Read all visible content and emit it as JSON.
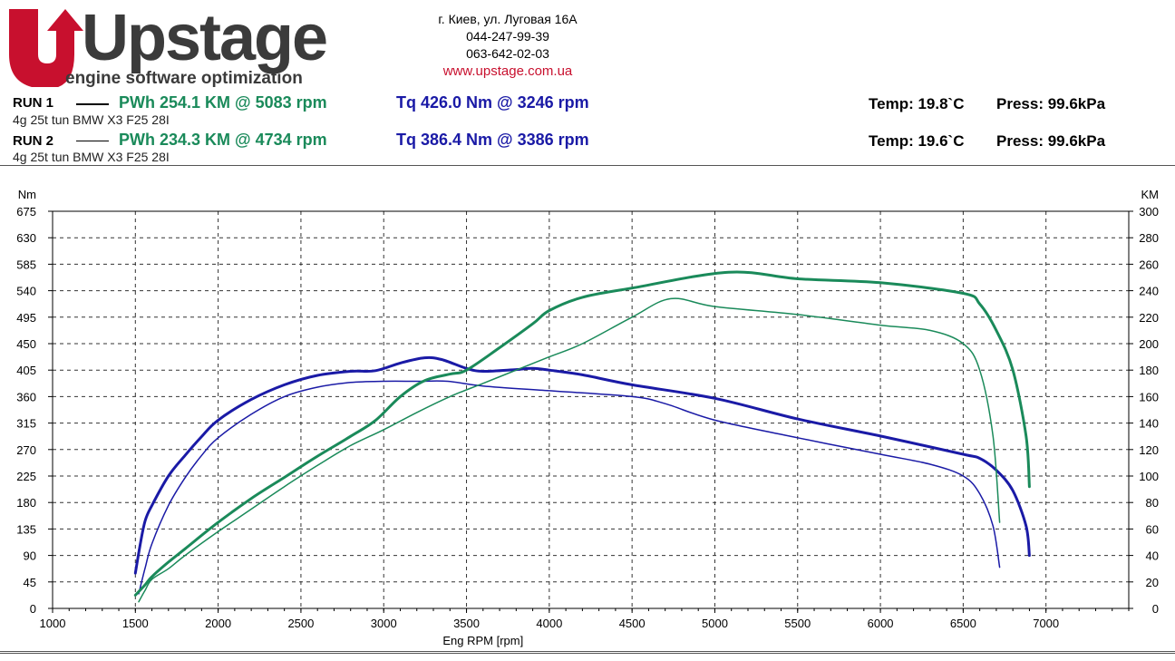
{
  "header": {
    "logo_text": "Upstage",
    "logo_tagline": "engine software optimization",
    "address": "г. Киев, ул. Луговая 16А",
    "phone1": "044-247-99-39",
    "phone2": "063-642-02-03",
    "website": "www.upstage.com.ua"
  },
  "runs": [
    {
      "label": "RUN 1",
      "power": "PWh  254.1 KM @ 5083 rpm",
      "torque": "Tq 426.0 Nm @ 3246 rpm",
      "temp": "Temp: 19.8`C",
      "press": "Press: 99.6kPa",
      "car": "4g 25t tun BMW X3 F25 28I"
    },
    {
      "label": "RUN 2",
      "power": "PWh  234.3 KM @ 4734 rpm",
      "torque": "Tq 386.4 Nm @ 3386 rpm",
      "temp": "Temp: 19.6`C",
      "press": "Press: 99.6kPa",
      "car": "4g 25t tun BMW X3 F25 28I"
    }
  ],
  "colors": {
    "power": "#1a8a5a",
    "torque": "#1a1aa6",
    "brand_red": "#c8102e"
  },
  "chart_data": {
    "type": "line",
    "xlabel": "Eng RPM [rpm]",
    "ylabel_left": "Nm",
    "ylabel_right": "KM",
    "xlim": [
      1000,
      7500
    ],
    "ylim_left": [
      0,
      675
    ],
    "ylim_right": [
      0,
      300
    ],
    "x_ticks": [
      1000,
      1500,
      2000,
      2500,
      3000,
      3500,
      4000,
      4500,
      5000,
      5500,
      6000,
      6500,
      7000
    ],
    "y_ticks_left": [
      0,
      45,
      90,
      135,
      180,
      225,
      270,
      315,
      360,
      405,
      450,
      495,
      540,
      585,
      630,
      675
    ],
    "y_ticks_right": [
      0,
      20,
      40,
      60,
      80,
      100,
      120,
      140,
      160,
      180,
      200,
      220,
      240,
      260,
      280,
      300
    ],
    "grid": true,
    "series": [
      {
        "axis": "left",
        "weight": "thick",
        "color": "#1a1aa6",
        "points": [
          [
            1500,
            60
          ],
          [
            1530,
            110
          ],
          [
            1560,
            150
          ],
          [
            1600,
            175
          ],
          [
            1700,
            225
          ],
          [
            1800,
            260
          ],
          [
            1900,
            292
          ],
          [
            2000,
            320
          ],
          [
            2200,
            355
          ],
          [
            2400,
            380
          ],
          [
            2600,
            396
          ],
          [
            2800,
            403
          ],
          [
            2950,
            404
          ],
          [
            3100,
            417
          ],
          [
            3246,
            426
          ],
          [
            3350,
            423
          ],
          [
            3500,
            408
          ],
          [
            3600,
            403
          ],
          [
            3800,
            406
          ],
          [
            3900,
            408
          ],
          [
            4000,
            405
          ],
          [
            4200,
            397
          ],
          [
            4500,
            380
          ],
          [
            5000,
            357
          ],
          [
            5500,
            322
          ],
          [
            6000,
            293
          ],
          [
            6500,
            262
          ],
          [
            6600,
            255
          ],
          [
            6700,
            235
          ],
          [
            6800,
            200
          ],
          [
            6880,
            140
          ],
          [
            6900,
            90
          ]
        ]
      },
      {
        "axis": "left",
        "weight": "thin",
        "color": "#1a1aa6",
        "points": [
          [
            1520,
            25
          ],
          [
            1560,
            70
          ],
          [
            1600,
            110
          ],
          [
            1700,
            175
          ],
          [
            1800,
            222
          ],
          [
            1900,
            260
          ],
          [
            2000,
            290
          ],
          [
            2200,
            330
          ],
          [
            2400,
            360
          ],
          [
            2600,
            376
          ],
          [
            2800,
            384
          ],
          [
            3000,
            386
          ],
          [
            3200,
            386
          ],
          [
            3386,
            386
          ],
          [
            3600,
            378
          ],
          [
            4000,
            370
          ],
          [
            4500,
            360
          ],
          [
            4700,
            348
          ],
          [
            5000,
            320
          ],
          [
            5500,
            290
          ],
          [
            6000,
            262
          ],
          [
            6300,
            245
          ],
          [
            6500,
            225
          ],
          [
            6600,
            195
          ],
          [
            6680,
            140
          ],
          [
            6720,
            70
          ]
        ]
      },
      {
        "axis": "right",
        "weight": "thick",
        "color": "#1a8a5a",
        "points": [
          [
            1500,
            10
          ],
          [
            1560,
            18
          ],
          [
            1600,
            24
          ],
          [
            1700,
            35
          ],
          [
            1800,
            45
          ],
          [
            2000,
            65
          ],
          [
            2200,
            83
          ],
          [
            2400,
            99
          ],
          [
            2600,
            115
          ],
          [
            2800,
            130
          ],
          [
            2950,
            142
          ],
          [
            3100,
            160
          ],
          [
            3246,
            172
          ],
          [
            3400,
            177
          ],
          [
            3500,
            180
          ],
          [
            3700,
            197
          ],
          [
            3900,
            215
          ],
          [
            4000,
            225
          ],
          [
            4200,
            235
          ],
          [
            4500,
            242
          ],
          [
            5083,
            254
          ],
          [
            5500,
            249
          ],
          [
            6000,
            246
          ],
          [
            6500,
            238
          ],
          [
            6600,
            230
          ],
          [
            6700,
            210
          ],
          [
            6800,
            180
          ],
          [
            6880,
            130
          ],
          [
            6900,
            92
          ]
        ]
      },
      {
        "axis": "right",
        "weight": "thin",
        "color": "#1a8a5a",
        "points": [
          [
            1520,
            5
          ],
          [
            1560,
            14
          ],
          [
            1600,
            22
          ],
          [
            1700,
            30
          ],
          [
            1800,
            40
          ],
          [
            2000,
            58
          ],
          [
            2200,
            75
          ],
          [
            2400,
            92
          ],
          [
            2600,
            108
          ],
          [
            2800,
            123
          ],
          [
            3000,
            135
          ],
          [
            3200,
            148
          ],
          [
            3400,
            160
          ],
          [
            3600,
            170
          ],
          [
            3800,
            180
          ],
          [
            4000,
            190
          ],
          [
            4200,
            200
          ],
          [
            4500,
            220
          ],
          [
            4734,
            234
          ],
          [
            5000,
            228
          ],
          [
            5500,
            222
          ],
          [
            6000,
            214
          ],
          [
            6300,
            210
          ],
          [
            6500,
            200
          ],
          [
            6600,
            180
          ],
          [
            6680,
            130
          ],
          [
            6720,
            65
          ]
        ]
      }
    ]
  }
}
